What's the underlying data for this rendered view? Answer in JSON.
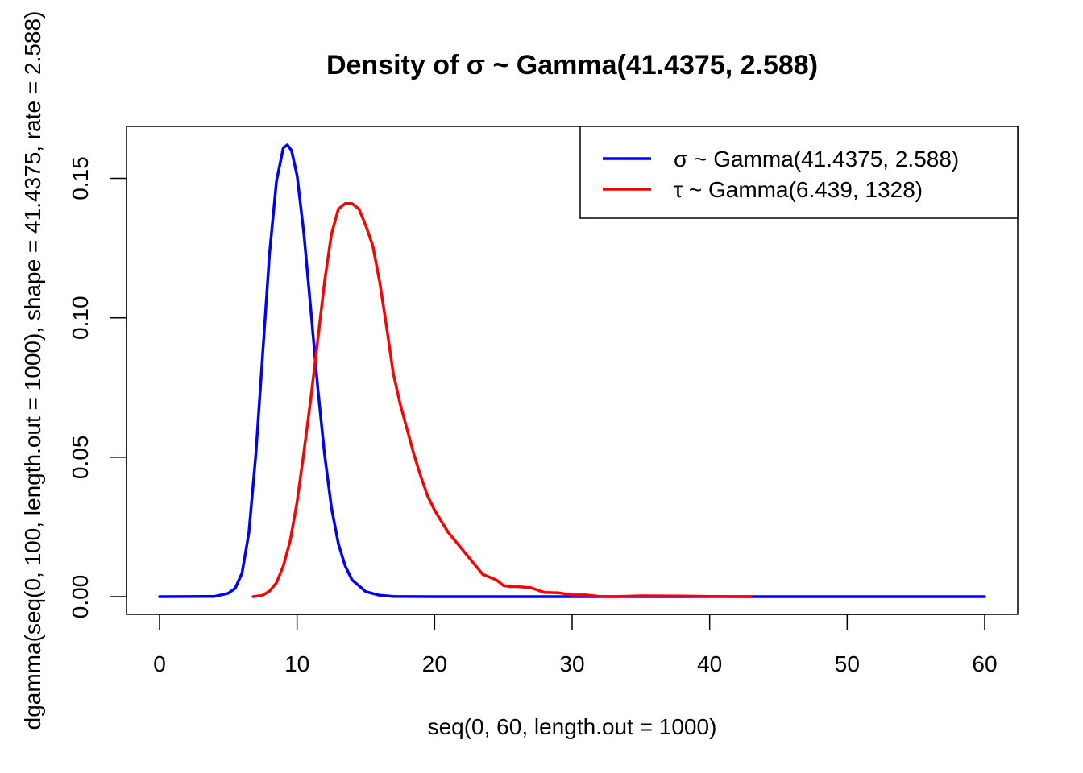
{
  "chart_data": {
    "type": "line",
    "title": "Density of σ ~ Gamma(41.4375, 2.588)",
    "xlabel": "seq(0, 60, length.out = 1000)",
    "ylabel": "dgamma(seq(0, 100, length.out = 1000), shape = 41.4375, rate = 2.588)",
    "xlim": [
      0,
      60
    ],
    "ylim": [
      0,
      0.162
    ],
    "xticks": [
      0,
      10,
      20,
      30,
      40,
      50,
      60
    ],
    "xtick_labels": [
      "0",
      "10",
      "20",
      "30",
      "40",
      "50",
      "60"
    ],
    "yticks": [
      0,
      0.05,
      0.1,
      0.15
    ],
    "ytick_labels": [
      "0.00",
      "0.05",
      "0.10",
      "0.15"
    ],
    "grid": false,
    "legend_position": "top-right",
    "series": [
      {
        "name": "σ ~ Gamma(41.4375, 2.588)",
        "color": "#0000ff",
        "x": [
          0,
          4,
          5,
          5.5,
          6,
          6.5,
          7,
          7.5,
          8,
          8.5,
          9,
          9.3,
          9.6,
          10,
          10.5,
          11,
          11.5,
          12,
          12.5,
          13,
          13.5,
          14,
          15,
          16,
          17,
          18,
          20,
          30,
          40,
          50,
          60
        ],
        "y": [
          0,
          0.0001,
          0.0012,
          0.003,
          0.0085,
          0.023,
          0.051,
          0.087,
          0.123,
          0.149,
          0.161,
          0.162,
          0.16,
          0.151,
          0.13,
          0.103,
          0.075,
          0.051,
          0.032,
          0.019,
          0.011,
          0.006,
          0.0018,
          0.0005,
          0.0001,
          3e-05,
          0,
          0,
          0,
          0,
          0
        ]
      },
      {
        "name": "τ ~ Gamma(6.439, 1328)",
        "color": "#ff0000",
        "x": [
          6.8,
          7.5,
          8,
          8.5,
          9,
          9.5,
          10,
          10.5,
          11,
          11.5,
          12,
          12.5,
          13,
          13.5,
          14,
          14.5,
          15,
          15.5,
          16,
          16.5,
          17,
          17.5,
          18,
          18.5,
          19,
          19.5,
          20,
          21,
          22,
          23,
          23.5,
          24,
          24.5,
          25,
          25.5,
          26,
          27,
          28,
          29,
          30,
          31,
          32,
          33,
          35,
          38,
          40,
          43
        ],
        "y": [
          0,
          0.0005,
          0.002,
          0.005,
          0.011,
          0.02,
          0.034,
          0.052,
          0.071,
          0.092,
          0.113,
          0.13,
          0.139,
          0.141,
          0.141,
          0.139,
          0.133,
          0.126,
          0.113,
          0.097,
          0.08,
          0.069,
          0.06,
          0.051,
          0.043,
          0.036,
          0.031,
          0.023,
          0.017,
          0.011,
          0.008,
          0.007,
          0.006,
          0.004,
          0.0036,
          0.0036,
          0.0032,
          0.0015,
          0.0014,
          0.0006,
          0.0006,
          0.0001,
          0,
          0.0003,
          0.0002,
          0.0001,
          0
        ]
      }
    ]
  }
}
